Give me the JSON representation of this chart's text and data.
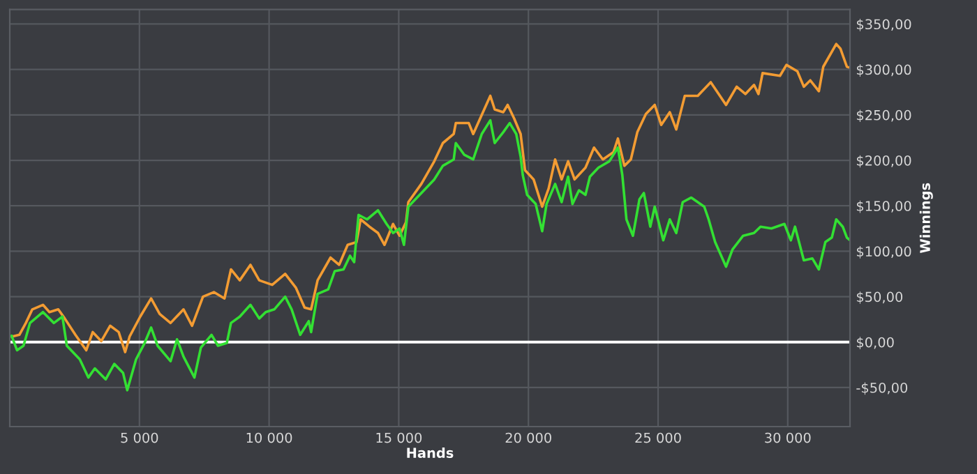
{
  "chart_data": {
    "type": "line",
    "xlabel": "Hands",
    "ylabel": "Winnings",
    "xlim": [
      0,
      32400
    ],
    "ylim": [
      -93,
      366
    ],
    "xticks": [
      {
        "value": 5000,
        "label": "5 000"
      },
      {
        "value": 10000,
        "label": "10 000"
      },
      {
        "value": 15000,
        "label": "15 000"
      },
      {
        "value": 20000,
        "label": "20 000"
      },
      {
        "value": 25000,
        "label": "25 000"
      },
      {
        "value": 30000,
        "label": "30 000"
      }
    ],
    "yticks": [
      {
        "value": -50,
        "label": "-$50,00"
      },
      {
        "value": 0,
        "label": "$0,00"
      },
      {
        "value": 50,
        "label": "$50,00"
      },
      {
        "value": 100,
        "label": "$100,00"
      },
      {
        "value": 150,
        "label": "$150,00"
      },
      {
        "value": 200,
        "label": "$200,00"
      },
      {
        "value": 250,
        "label": "$250,00"
      },
      {
        "value": 300,
        "label": "$300,00"
      },
      {
        "value": 350,
        "label": "$350,00"
      }
    ],
    "grid": true,
    "ref_lines": [
      {
        "axis": "y",
        "value": 0,
        "color": "#ffffff"
      }
    ],
    "series": [
      {
        "color": "#f39c33",
        "x": [
          70,
          370,
          620,
          870,
          1280,
          1530,
          1870,
          2120,
          2530,
          2950,
          3200,
          3530,
          3870,
          4200,
          4450,
          4620,
          5030,
          5450,
          5780,
          6200,
          6700,
          7030,
          7450,
          7870,
          8280,
          8530,
          8870,
          9280,
          9620,
          10120,
          10620,
          11030,
          11370,
          11620,
          11870,
          12370,
          12700,
          13030,
          13370,
          13530,
          13870,
          14200,
          14450,
          14780,
          15030,
          15280,
          15370,
          15870,
          16370,
          16700,
          17120,
          17200,
          17700,
          17870,
          18530,
          18700,
          19030,
          19200,
          19450,
          19700,
          19870,
          20200,
          20530,
          20780,
          21030,
          21280,
          21530,
          21780,
          22200,
          22530,
          22870,
          23280,
          23450,
          23700,
          23950,
          24200,
          24530,
          24870,
          25120,
          25450,
          25700,
          25870,
          26030,
          26530,
          27030,
          27620,
          28030,
          28370,
          28700,
          28870,
          29030,
          29700,
          29950,
          30370,
          30620,
          30870,
          31200,
          31370,
          31870,
          32030,
          32280,
          32400
        ],
        "values": [
          6,
          8,
          21,
          36,
          41,
          33,
          36,
          26,
          8,
          -9,
          11,
          1,
          18,
          11,
          -11,
          6,
          28,
          48,
          31,
          21,
          36,
          18,
          50,
          55,
          48,
          80,
          68,
          85,
          68,
          63,
          75,
          60,
          38,
          36,
          68,
          93,
          85,
          107,
          110,
          135,
          127,
          120,
          107,
          130,
          117,
          132,
          154,
          174,
          199,
          219,
          229,
          241,
          241,
          229,
          271,
          256,
          253,
          261,
          246,
          229,
          189,
          179,
          149,
          169,
          201,
          179,
          199,
          179,
          192,
          214,
          201,
          209,
          224,
          194,
          201,
          231,
          251,
          261,
          239,
          253,
          234,
          253,
          271,
          271,
          286,
          261,
          281,
          273,
          283,
          273,
          296,
          293,
          305,
          298,
          281,
          288,
          276,
          303,
          328,
          323,
          303,
          302
        ]
      },
      {
        "color": "#33e033",
        "x": [
          70,
          280,
          530,
          780,
          1280,
          1700,
          2030,
          2200,
          2700,
          3030,
          3280,
          3700,
          4030,
          4370,
          4530,
          4870,
          5200,
          5450,
          5700,
          6200,
          6450,
          6700,
          7120,
          7370,
          7780,
          8030,
          8370,
          8530,
          8870,
          9280,
          9620,
          9870,
          10200,
          10620,
          10870,
          11200,
          11530,
          11620,
          11870,
          12280,
          12530,
          12870,
          13120,
          13280,
          13450,
          13780,
          14200,
          14530,
          14780,
          15030,
          15200,
          15370,
          15870,
          16370,
          16700,
          17120,
          17200,
          17530,
          17870,
          18200,
          18530,
          18700,
          19030,
          19280,
          19530,
          19700,
          19780,
          19950,
          20280,
          20530,
          20700,
          21030,
          21280,
          21530,
          21700,
          21950,
          22200,
          22370,
          22700,
          23120,
          23450,
          23620,
          23780,
          24030,
          24280,
          24450,
          24700,
          24870,
          25200,
          25450,
          25700,
          25950,
          26280,
          26780,
          26950,
          27200,
          27620,
          27870,
          28280,
          28700,
          28950,
          29370,
          29870,
          30120,
          30280,
          30620,
          30950,
          31200,
          31450,
          31700,
          31870,
          32120,
          32280,
          32400
        ],
        "values": [
          7,
          -9,
          -4,
          21,
          33,
          21,
          28,
          -4,
          -19,
          -39,
          -29,
          -41,
          -24,
          -34,
          -53,
          -19,
          -1,
          16,
          -4,
          -21,
          3,
          -16,
          -39,
          -6,
          8,
          -4,
          -1,
          21,
          28,
          41,
          26,
          33,
          36,
          50,
          36,
          8,
          23,
          11,
          53,
          58,
          78,
          80,
          95,
          88,
          140,
          135,
          145,
          130,
          120,
          125,
          107,
          149,
          164,
          179,
          194,
          201,
          219,
          206,
          201,
          229,
          244,
          219,
          231,
          241,
          229,
          204,
          184,
          162,
          152,
          122,
          152,
          174,
          154,
          182,
          152,
          167,
          162,
          182,
          192,
          199,
          214,
          184,
          135,
          117,
          157,
          164,
          127,
          149,
          112,
          135,
          120,
          154,
          159,
          149,
          135,
          110,
          83,
          102,
          117,
          120,
          127,
          125,
          130,
          112,
          127,
          90,
          92,
          80,
          110,
          115,
          135,
          127,
          115,
          112
        ]
      }
    ]
  }
}
